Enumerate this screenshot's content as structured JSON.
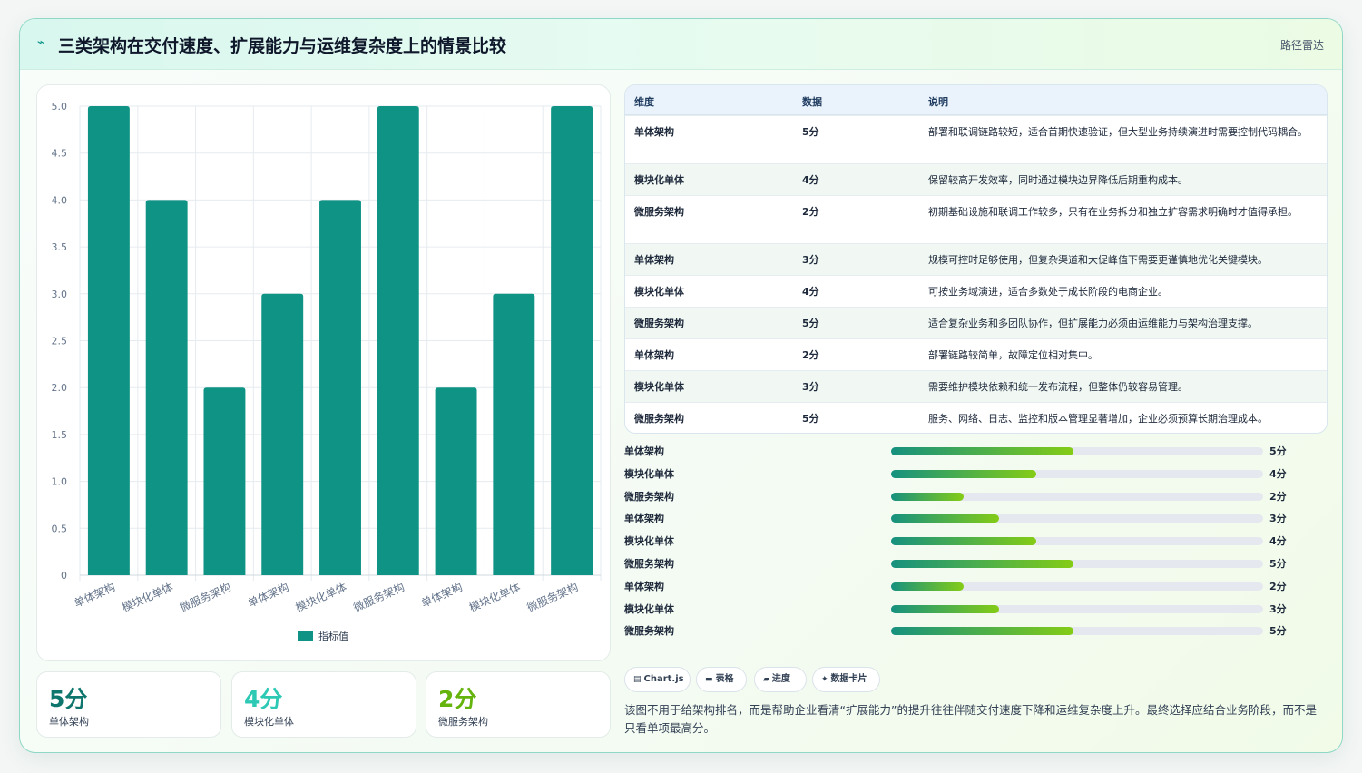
{
  "header": {
    "icon": "lightning-icon",
    "title": "三类架构在交付速度、扩展能力与运维复杂度上的情景比较",
    "tag": "路径雷达"
  },
  "chart_data": {
    "type": "bar",
    "categories": [
      "单体架构",
      "模块化单体",
      "微服务架构",
      "单体架构",
      "模块化单体",
      "微服务架构",
      "单体架构",
      "模块化单体",
      "微服务架构"
    ],
    "series": [
      {
        "name": "指标值",
        "values": [
          5,
          4,
          2,
          3,
          4,
          5,
          2,
          3,
          5
        ],
        "color": "#0e9384"
      }
    ],
    "yticks": [
      "0",
      "0.5",
      "1.0",
      "1.5",
      "2.0",
      "2.5",
      "3.0",
      "3.5",
      "4.0",
      "4.5",
      "5.0"
    ],
    "ylim": [
      0,
      5
    ],
    "grid": true,
    "legend_position": "bottom"
  },
  "stats": [
    {
      "value": "5分",
      "label": "单体架构",
      "color": "#0f766e"
    },
    {
      "value": "4分",
      "label": "模块化单体",
      "color": "#2dc9b4"
    },
    {
      "value": "2分",
      "label": "微服务架构",
      "color": "#65b30d"
    }
  ],
  "table": {
    "headers": [
      "维度",
      "数据",
      "说明"
    ],
    "rows": [
      {
        "name": "单体架构",
        "score": "5分",
        "desc": "部署和联调链路较短，适合首期快速验证，但大型业务持续演进时需要控制代码耦合。"
      },
      {
        "name": "模块化单体",
        "score": "4分",
        "desc": "保留较高开发效率，同时通过模块边界降低后期重构成本。"
      },
      {
        "name": "微服务架构",
        "score": "2分",
        "desc": "初期基础设施和联调工作较多，只有在业务拆分和独立扩容需求明确时才值得承担。"
      },
      {
        "name": "单体架构",
        "score": "3分",
        "desc": "规模可控时足够使用，但复杂渠道和大促峰值下需要更谨慎地优化关键模块。"
      },
      {
        "name": "模块化单体",
        "score": "4分",
        "desc": "可按业务域演进，适合多数处于成长阶段的电商企业。"
      },
      {
        "name": "微服务架构",
        "score": "5分",
        "desc": "适合复杂业务和多团队协作，但扩展能力必须由运维能力与架构治理支撑。"
      },
      {
        "name": "单体架构",
        "score": "2分",
        "desc": "部署链路较简单，故障定位相对集中。"
      },
      {
        "name": "模块化单体",
        "score": "3分",
        "desc": "需要维护模块依赖和统一发布流程，但整体仍较容易管理。"
      },
      {
        "name": "微服务架构",
        "score": "5分",
        "desc": "服务、网络、日志、监控和版本管理显著增加，企业必须预算长期治理成本。"
      }
    ]
  },
  "progress": [
    {
      "label": "单体架构",
      "value": "5分",
      "fraction": 0.49
    },
    {
      "label": "模块化单体",
      "value": "4分",
      "fraction": 0.39
    },
    {
      "label": "微服务架构",
      "value": "2分",
      "fraction": 0.195
    },
    {
      "label": "单体架构",
      "value": "3分",
      "fraction": 0.29
    },
    {
      "label": "模块化单体",
      "value": "4分",
      "fraction": 0.39
    },
    {
      "label": "微服务架构",
      "value": "5分",
      "fraction": 0.49
    },
    {
      "label": "单体架构",
      "value": "2分",
      "fraction": 0.195
    },
    {
      "label": "模块化单体",
      "value": "3分",
      "fraction": 0.29
    },
    {
      "label": "微服务架构",
      "value": "5分",
      "fraction": 0.49
    }
  ],
  "pills": [
    {
      "icon": "chart-icon",
      "glyph": "▤",
      "label": "Chart.js"
    },
    {
      "icon": "table-icon",
      "glyph": "▬",
      "label": "表格"
    },
    {
      "icon": "progress-icon",
      "glyph": "▰",
      "label": "进度"
    },
    {
      "icon": "card-icon",
      "glyph": "✦",
      "label": "数据卡片"
    }
  ],
  "note": "该图不用于给架构排名，而是帮助企业看清“扩展能力”的提升往往伴随交付速度下降和运维复杂度上升。最终选择应结合业务阶段，而不是只看单项最高分。"
}
